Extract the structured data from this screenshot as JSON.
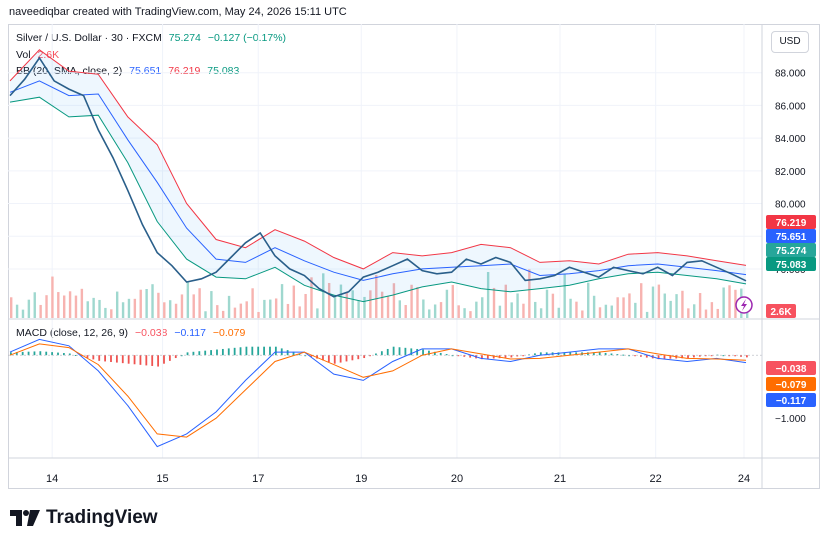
{
  "header": {
    "attribution": "naveediqbar created with TradingView.com, May 24, 2026 15:11 UTC"
  },
  "legend": {
    "symbol": "Silver / U.S. Dollar · 30 · FXCM",
    "last": "75.274",
    "change": "−0.127 (−0.17%)",
    "vol_label": "Vol",
    "vol_value": "2.6K",
    "bb_label": "BB (20, SMA, close, 2)",
    "bb_mid": "75.651",
    "bb_upper": "76.219",
    "bb_lower": "75.083",
    "macd_label": "MACD (close, 12, 26, 9)",
    "macd_hist": "−0.038",
    "macd_macd": "−0.117",
    "macd_signal": "−0.079"
  },
  "currency_button": "USD",
  "colors": {
    "price": "#2962ff",
    "bb_mid": "#2962ff",
    "bb_upper": "#f23645",
    "bb_lower": "#089981",
    "macd": "#2962ff",
    "signal": "#ff6d00",
    "up": "#26a69a",
    "down": "#ef5350"
  },
  "chart_data": {
    "type": "line",
    "title": "Silver / U.S. Dollar · 30 · FXCM",
    "x_ticks": [
      "14",
      "15",
      "17",
      "19",
      "20",
      "21",
      "22",
      "24"
    ],
    "price_axis": {
      "ticks": [
        "88.000",
        "86.000",
        "84.000",
        "82.000",
        "80.000",
        "78.000",
        "76.000"
      ],
      "ylim": [
        73.0,
        90.0
      ]
    },
    "price_labels": [
      {
        "text": "76.219",
        "value": 76.219,
        "color": "#f23645"
      },
      {
        "text": "75.651",
        "value": 75.651,
        "color": "#2962ff"
      },
      {
        "text": "75.274",
        "value": 75.274,
        "color": "#26a69a"
      },
      {
        "text": "75.083",
        "value": 75.083,
        "color": "#089981"
      }
    ],
    "volume_label": {
      "text": "2.6K",
      "color": "#f7525f"
    },
    "macd_axis": {
      "ticks": [
        "−1.000"
      ],
      "ylim": [
        -1.6,
        0.4
      ]
    },
    "macd_labels": [
      {
        "text": "−0.038",
        "value": -0.038,
        "color": "#f7525f"
      },
      {
        "text": "−0.079",
        "value": -0.079,
        "color": "#ff6d00"
      },
      {
        "text": "−0.117",
        "value": -0.117,
        "color": "#2962ff"
      }
    ],
    "series": [
      {
        "name": "Silver / U.S. Dollar",
        "x": [
          0,
          2,
          4,
          6,
          8,
          10,
          12,
          14,
          16,
          18,
          20,
          22,
          24,
          26,
          28,
          30,
          32,
          34,
          36,
          38,
          40,
          42,
          44,
          46,
          48,
          50,
          52,
          54,
          56,
          58,
          60,
          62,
          64,
          66,
          68,
          70,
          72,
          74,
          76,
          78,
          80,
          82,
          84,
          86,
          88,
          90,
          92,
          94,
          96,
          98,
          100
        ],
        "y": [
          86.6,
          87.6,
          88.9,
          87.5,
          87.0,
          86.6,
          84.5,
          82.8,
          80.8,
          78.7,
          77.0,
          76.2,
          75.2,
          75.4,
          75.8,
          76.7,
          77.6,
          78.2,
          76.8,
          76.0,
          75.6,
          74.8,
          74.3,
          74.6,
          75.5,
          75.8,
          76.2,
          76.6,
          75.9,
          75.7,
          75.8,
          76.6,
          76.3,
          76.7,
          76.4,
          75.3,
          75.4,
          75.6,
          76.1,
          75.8,
          75.5,
          76.1,
          75.9,
          75.7,
          76.1,
          75.6,
          76.4,
          76.5,
          76.1,
          75.7,
          75.274
        ]
      },
      {
        "name": "BB upper",
        "x": [
          0,
          4,
          8,
          12,
          16,
          20,
          24,
          28,
          32,
          36,
          40,
          44,
          48,
          52,
          56,
          60,
          64,
          68,
          72,
          76,
          80,
          84,
          88,
          92,
          96,
          100
        ],
        "y": [
          87.5,
          89.4,
          88.1,
          87.9,
          85.3,
          83.6,
          80.0,
          77.8,
          77.3,
          78.4,
          77.7,
          76.7,
          76.0,
          77.0,
          76.8,
          77.0,
          77.5,
          77.3,
          76.4,
          76.5,
          76.3,
          76.9,
          77.0,
          76.8,
          76.5,
          76.219
        ]
      },
      {
        "name": "BB basis",
        "x": [
          0,
          4,
          8,
          12,
          16,
          20,
          24,
          28,
          32,
          36,
          40,
          44,
          48,
          52,
          56,
          60,
          64,
          68,
          72,
          76,
          80,
          84,
          88,
          92,
          96,
          100
        ],
        "y": [
          86.8,
          87.5,
          86.6,
          86.7,
          83.9,
          81.3,
          78.5,
          76.6,
          76.4,
          77.3,
          76.5,
          75.8,
          75.3,
          75.7,
          76.0,
          76.1,
          76.2,
          76.3,
          75.6,
          75.7,
          75.9,
          76.2,
          76.3,
          76.1,
          75.9,
          75.651
        ]
      },
      {
        "name": "BB lower",
        "x": [
          0,
          4,
          8,
          12,
          16,
          20,
          24,
          28,
          32,
          36,
          40,
          44,
          48,
          52,
          56,
          60,
          64,
          68,
          72,
          76,
          80,
          84,
          88,
          92,
          96,
          100
        ],
        "y": [
          86.2,
          86.5,
          85.3,
          85.4,
          82.5,
          78.9,
          76.6,
          75.5,
          75.4,
          76.1,
          75.0,
          74.4,
          74.0,
          74.4,
          74.9,
          75.2,
          74.8,
          74.6,
          74.8,
          75.0,
          75.4,
          75.7,
          75.8,
          75.6,
          75.4,
          75.083
        ]
      },
      {
        "name": "MACD",
        "x": [
          0,
          4,
          8,
          12,
          16,
          20,
          24,
          28,
          32,
          36,
          40,
          44,
          48,
          52,
          56,
          60,
          64,
          68,
          72,
          76,
          80,
          84,
          88,
          92,
          96,
          100
        ],
        "y": [
          0.05,
          0.25,
          0.15,
          -0.25,
          -0.8,
          -1.45,
          -1.25,
          -0.9,
          -0.4,
          0.05,
          0.05,
          -0.3,
          -0.4,
          -0.1,
          0.1,
          0.1,
          -0.05,
          -0.1,
          0.0,
          0.05,
          0.1,
          0.1,
          -0.05,
          -0.1,
          -0.05,
          -0.117
        ]
      },
      {
        "name": "Signal",
        "x": [
          0,
          4,
          8,
          12,
          16,
          20,
          24,
          28,
          32,
          36,
          40,
          44,
          48,
          52,
          56,
          60,
          64,
          68,
          72,
          76,
          80,
          84,
          88,
          92,
          96,
          100
        ],
        "y": [
          0.0,
          0.18,
          0.12,
          -0.15,
          -0.65,
          -1.25,
          -1.3,
          -1.0,
          -0.55,
          -0.1,
          0.05,
          -0.15,
          -0.35,
          -0.25,
          0.0,
          0.1,
          0.02,
          -0.06,
          -0.05,
          0.0,
          0.05,
          0.1,
          0.02,
          -0.05,
          -0.06,
          -0.079
        ]
      }
    ]
  }
}
